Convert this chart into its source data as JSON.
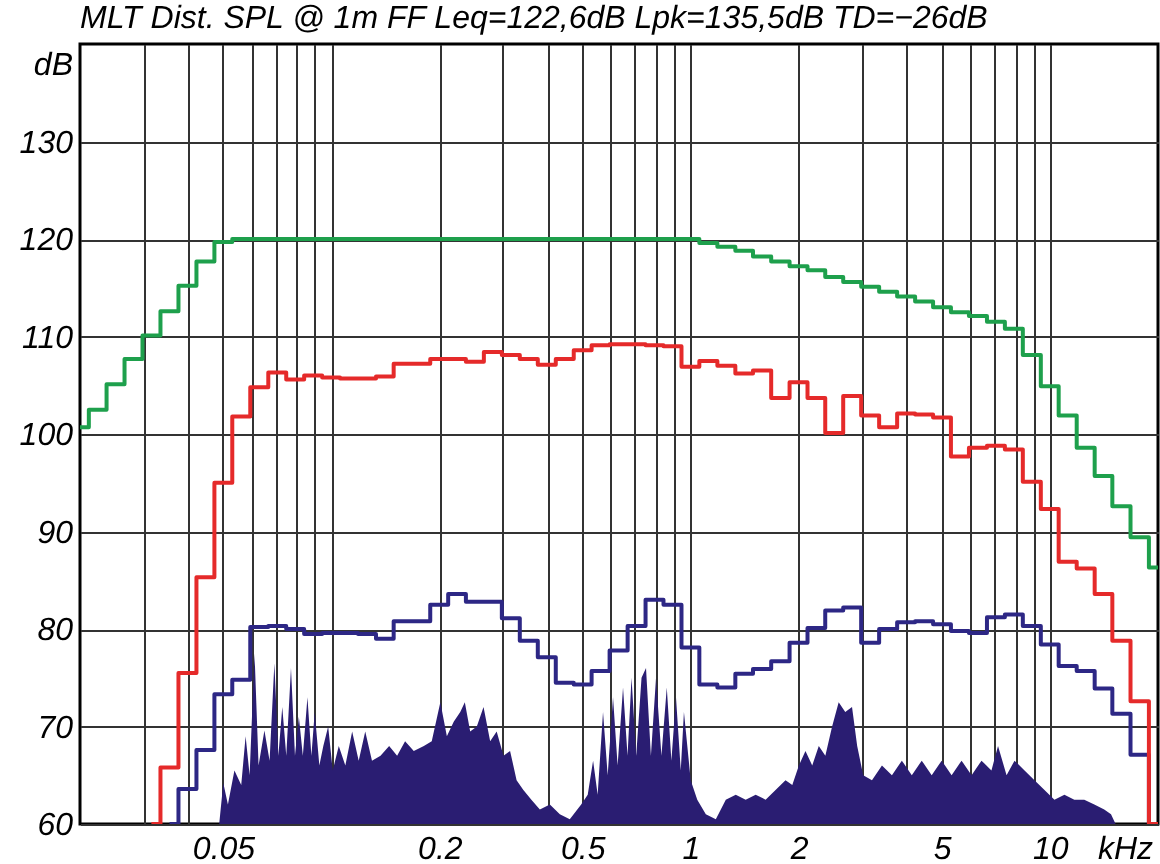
{
  "chart_data": {
    "type": "step",
    "title": "MLT Dist. SPL @ 1m FF Leq=122,6dB Lpk=135,5dB TD=−26dB",
    "xlabel": "kHz",
    "ylabel": "dB",
    "log": "x",
    "grid": true,
    "xlim": [
      0.02,
      20
    ],
    "ylim": [
      60,
      140
    ],
    "xticks": [
      {
        "value": 0.03,
        "label": null
      },
      {
        "value": 0.04,
        "label": null
      },
      0.05,
      {
        "value": 0.06,
        "label": null
      },
      {
        "value": 0.07,
        "label": null
      },
      {
        "value": 0.08,
        "label": null
      },
      {
        "value": 0.09,
        "label": null
      },
      {
        "value": 0.1,
        "label": null
      },
      0.2,
      {
        "value": 0.3,
        "label": null
      },
      {
        "value": 0.4,
        "label": null
      },
      0.5,
      {
        "value": 0.6,
        "label": null
      },
      {
        "value": 0.7,
        "label": null
      },
      {
        "value": 0.8,
        "label": null
      },
      {
        "value": 0.9,
        "label": null
      },
      1,
      2,
      {
        "value": 3,
        "label": null
      },
      {
        "value": 4,
        "label": null
      },
      5,
      {
        "value": 6,
        "label": null
      },
      {
        "value": 7,
        "label": null
      },
      {
        "value": 8,
        "label": null
      },
      {
        "value": 9,
        "label": null
      },
      10
    ],
    "yticks": [
      60,
      70,
      80,
      90,
      100,
      110,
      120,
      130
    ],
    "x": [
      0.02,
      0.0224,
      0.0251,
      0.0282,
      0.0316,
      0.0355,
      0.0398,
      0.0447,
      0.0501,
      0.0562,
      0.0631,
      0.0708,
      0.0794,
      0.0891,
      0.1,
      0.112,
      0.126,
      0.141,
      0.158,
      0.178,
      0.2,
      0.224,
      0.251,
      0.282,
      0.316,
      0.355,
      0.398,
      0.447,
      0.501,
      0.562,
      0.631,
      0.708,
      0.794,
      0.891,
      1,
      1.12,
      1.26,
      1.41,
      1.58,
      1.78,
      2,
      2.24,
      2.51,
      2.82,
      3.16,
      3.55,
      3.98,
      4.47,
      5.01,
      5.62,
      6.31,
      7.08,
      7.94,
      8.91,
      10,
      11.2,
      12.6,
      14.1,
      15.8,
      17.8,
      20
    ],
    "series": [
      {
        "type": "area",
        "color": "#2a1d72",
        "x": [
          0.0488,
          0.0501,
          0.0516,
          0.0538,
          0.0562,
          0.0578,
          0.0593,
          0.0612,
          0.0628,
          0.0652,
          0.0674,
          0.0695,
          0.0713,
          0.0731,
          0.075,
          0.0773,
          0.0793,
          0.0813,
          0.0834,
          0.0859,
          0.0881,
          0.09,
          0.0927,
          0.0951,
          0.0981,
          0.101,
          0.105,
          0.1095,
          0.1144,
          0.1193,
          0.1244,
          0.1299,
          0.1372,
          0.145,
          0.1526,
          0.1606,
          0.1698,
          0.1811,
          0.1905,
          0.2013,
          0.2099,
          0.2193,
          0.2287,
          0.2355,
          0.2437,
          0.2543,
          0.2655,
          0.277,
          0.2888,
          0.3017,
          0.3147,
          0.3281,
          0.3427,
          0.3607,
          0.3809,
          0.4061,
          0.4329,
          0.4614,
          0.4963,
          0.5176,
          0.5357,
          0.5516,
          0.5709,
          0.5882,
          0.6087,
          0.6269,
          0.649,
          0.668,
          0.6853,
          0.7061,
          0.7307,
          0.752,
          0.7759,
          0.8018,
          0.83,
          0.859,
          0.8847,
          0.9112,
          0.9395,
          0.9588,
          1.0013,
          1.0443,
          1.1031,
          1.1763,
          1.2538,
          1.3364,
          1.4243,
          1.5182,
          1.618,
          1.7247,
          1.8384,
          1.9201,
          2.0028,
          2.089,
          2.1815,
          2.2751,
          2.373,
          2.4781,
          2.5847,
          2.6958,
          2.8152,
          2.91,
          3.0239,
          3.1989,
          3.4106,
          3.6354,
          3.8746,
          4.1294,
          4.401,
          4.6907,
          5.0003,
          5.3297,
          5.6803,
          6.0561,
          6.4547,
          6.8788,
          7.1754,
          7.5791,
          7.9768,
          8.504,
          9.0638,
          9.6626,
          10.3,
          10.98,
          11.7,
          12.47,
          13.3,
          14.17,
          14.8,
          15.24
        ],
        "values": [
          60,
          64.2,
          62,
          65.5,
          64,
          69,
          65,
          77.5,
          66,
          69.6,
          66.5,
          76.5,
          67,
          72,
          67,
          76,
          67,
          71,
          67,
          73,
          67,
          71.5,
          66,
          68,
          70,
          65.5,
          68,
          66,
          69.5,
          66.5,
          69.5,
          66.5,
          67,
          68,
          67,
          68.5,
          67.5,
          68,
          68.5,
          72.5,
          69,
          70.5,
          71.5,
          72.5,
          69.5,
          70,
          72,
          68.5,
          69.5,
          67,
          67.5,
          64.5,
          63.5,
          62.5,
          61.5,
          62,
          61,
          60.5,
          62,
          63,
          66.5,
          63,
          71.5,
          65,
          73,
          66,
          74,
          67,
          75,
          67,
          75,
          76,
          67,
          75,
          67,
          74,
          66.5,
          73,
          65.5,
          71.5,
          64.5,
          62.5,
          61,
          60.5,
          62.5,
          63,
          62.5,
          63,
          62.5,
          63.5,
          64.5,
          64,
          66,
          67.5,
          66,
          68,
          67,
          70,
          72.5,
          71.5,
          72,
          68,
          65,
          64.5,
          66,
          65,
          66.5,
          65,
          66.5,
          65,
          66.5,
          65,
          66.5,
          65,
          66.5,
          65.5,
          68,
          65,
          66.5,
          65.5,
          64.5,
          63.5,
          62.5,
          63,
          62.5,
          62.5,
          62,
          61.5,
          61,
          60
        ]
      },
      {
        "color": "#2d2785",
        "values": [
          null,
          null,
          null,
          null,
          null,
          60,
          63.6,
          67.6,
          73.3,
          74.8,
          80.2,
          80.3,
          80.0,
          79.5,
          79.6,
          79.6,
          79.5,
          79.0,
          80.8,
          80.8,
          82.5,
          83.6,
          82.8,
          82.8,
          81.1,
          78.8,
          77.1,
          74.5,
          74.3,
          75.7,
          77.8,
          80.3,
          83.0,
          82.5,
          78.1,
          74.3,
          74.0,
          75.4,
          75.9,
          76.7,
          78.6,
          80.1,
          81.9,
          82.2,
          78.6,
          80.0,
          80.7,
          80.8,
          80.5,
          79.8,
          79.6,
          81.2,
          81.5,
          80.3,
          78.4,
          76.2,
          75.7,
          73.9,
          71.3,
          67.1,
          60
        ]
      },
      {
        "color": "#e52a2a",
        "values": [
          null,
          null,
          null,
          null,
          60,
          65.8,
          75.5,
          85.3,
          95.0,
          101.8,
          104.8,
          106.3,
          105.6,
          106.0,
          105.8,
          105.7,
          105.7,
          105.9,
          107.2,
          107.2,
          107.7,
          107.7,
          107.4,
          108.4,
          108.1,
          107.7,
          107.1,
          107.7,
          108.6,
          109.1,
          109.2,
          109.2,
          109.1,
          109.0,
          106.9,
          107.5,
          107.0,
          106.2,
          106.5,
          103.7,
          105.3,
          103.7,
          100.1,
          103.9,
          101.9,
          100.7,
          102.1,
          102.0,
          101.7,
          97.7,
          98.6,
          98.8,
          98.4,
          95.1,
          92.3,
          86.9,
          86.2,
          83.6,
          78.8,
          72.6,
          60
        ]
      },
      {
        "color": "#1ea04c",
        "values": [
          100.7,
          102.5,
          105.1,
          107.7,
          110.1,
          112.6,
          115.2,
          117.7,
          119.7,
          120,
          120,
          120,
          120,
          120,
          120,
          120,
          120,
          120,
          120,
          120,
          120,
          120,
          120,
          120,
          120,
          120,
          120,
          120,
          120,
          120,
          120,
          120,
          120,
          120,
          120,
          119.6,
          119.2,
          118.8,
          118.2,
          117.7,
          117.2,
          116.8,
          116.1,
          115.6,
          115.1,
          114.6,
          114.1,
          113.6,
          113.0,
          112.5,
          112.1,
          111.5,
          110.8,
          108.1,
          104.9,
          101.9,
          98.6,
          95.7,
          92.6,
          89.4,
          86.3
        ]
      }
    ]
  }
}
